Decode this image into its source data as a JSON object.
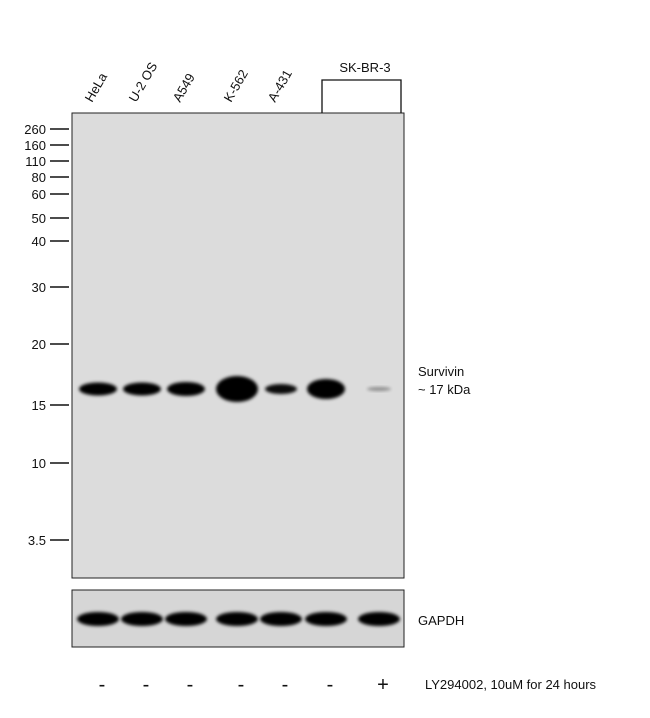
{
  "lane_labels": [
    "HeLa",
    "U-2 OS",
    "A549",
    "K-562",
    "A-431"
  ],
  "group_label": "SK-BR-3",
  "markers": [
    "260",
    "160",
    "110",
    "80",
    "60",
    "50",
    "40",
    "30",
    "20",
    "15",
    "10",
    "3.5"
  ],
  "band_labels": {
    "survivin": "Survivin",
    "size": "~ 17 kDa",
    "gapdh": "GAPDH"
  },
  "treatment": {
    "signs": [
      "-",
      "-",
      "-",
      "-",
      "-",
      "-",
      "+"
    ],
    "label": "LY294002, 10uM for 24 hours"
  }
}
